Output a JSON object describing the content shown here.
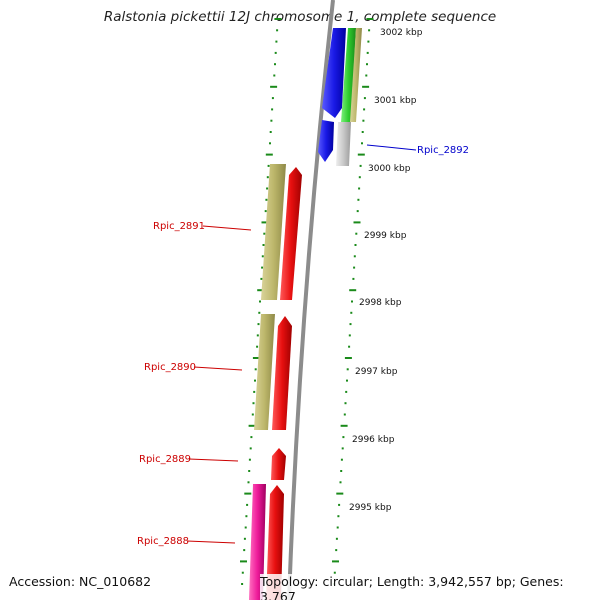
{
  "title": "Ralstonia pickettii 12J chromosome 1, complete sequence",
  "accession": "Accession: NC_010682",
  "summary": "Topology: circular; Length: 3,942,557 bp; Genes: 3,767",
  "colors": {
    "backbone": "#8c8c8c",
    "tick": "#1a8a1a",
    "forward_gene": "#e81010",
    "blue_gene": "#1a1ae6",
    "khaki_gene": "#bdb76b",
    "green_gene": "#2ecc2e",
    "grey_gene": "#c8c8c8",
    "pink_gene": "#ee1a9a",
    "label_red": "#cc0000",
    "label_blue": "#0000cc"
  },
  "scale_labels": [
    "3002 kbp",
    "3001 kbp",
    "3000 kbp",
    "2999 kbp",
    "2998 kbp",
    "2997 kbp",
    "2996 kbp",
    "2995 kbp"
  ],
  "gene_labels": [
    {
      "name": "Rpic_2892",
      "color": "label_blue"
    },
    {
      "name": "Rpic_2891",
      "color": "label_red"
    },
    {
      "name": "Rpic_2890",
      "color": "label_red"
    },
    {
      "name": "Rpic_2889",
      "color": "label_red"
    },
    {
      "name": "Rpic_2888",
      "color": "label_red"
    }
  ]
}
